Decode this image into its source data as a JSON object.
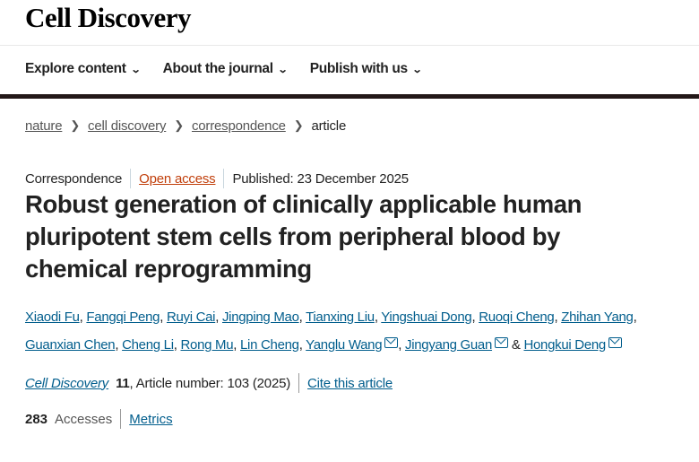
{
  "header": {
    "logo": "Cell Discovery"
  },
  "nav": [
    {
      "label": "Explore content"
    },
    {
      "label": "About the journal"
    },
    {
      "label": "Publish with us"
    }
  ],
  "breadcrumb": [
    "nature",
    "cell discovery",
    "correspondence",
    "article"
  ],
  "meta": {
    "type": "Correspondence",
    "access": "Open access",
    "published": "Published: 23 December 2025"
  },
  "title": "Robust generation of clinically applicable human pluripotent stem cells from peripheral blood by chemical reprogramming",
  "authors": [
    {
      "name": "Xiaodi Fu",
      "email": false
    },
    {
      "name": "Fangqi Peng",
      "email": false
    },
    {
      "name": "Ruyi Cai",
      "email": false
    },
    {
      "name": "Jingping Mao",
      "email": false
    },
    {
      "name": "Tianxing Liu",
      "email": false
    },
    {
      "name": "Yingshuai Dong",
      "email": false
    },
    {
      "name": "Ruoqi Cheng",
      "email": false
    },
    {
      "name": "Zhihan Yang",
      "email": false
    },
    {
      "name": "Guanxian Chen",
      "email": false
    },
    {
      "name": "Cheng Li",
      "email": false
    },
    {
      "name": "Rong Mu",
      "email": false
    },
    {
      "name": "Lin Cheng",
      "email": false
    },
    {
      "name": "Yanglu Wang",
      "email": true
    },
    {
      "name": "Jingyang Guan",
      "email": true
    },
    {
      "name": "Hongkui Deng",
      "email": true
    }
  ],
  "citation": {
    "journal": "Cell Discovery",
    "volume": "11",
    "article": ", Article number: 103 (2025)",
    "cite_label": "Cite this article"
  },
  "metrics": {
    "accesses_count": "283",
    "accesses_label": "Accesses",
    "metrics_label": "Metrics"
  }
}
